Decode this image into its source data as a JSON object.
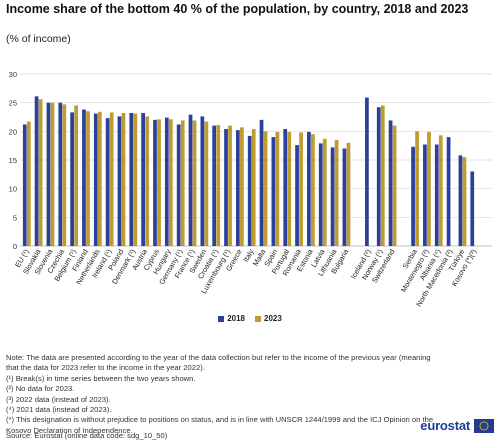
{
  "header": {
    "title": "Income share of the bottom 40 % of the population, by country, 2018 and 2023",
    "subtitle": "(% of income)"
  },
  "colors": {
    "series_2018": "#2b3f9c",
    "series_2023": "#bf9b30",
    "grid": "#d9d9d9"
  },
  "chart_data": {
    "type": "bar",
    "ylim": [
      0,
      30
    ],
    "yticks": [
      0,
      5,
      10,
      15,
      20,
      25,
      30
    ],
    "grid": true,
    "legend_position": "bottom",
    "categories": [
      "EU (¹)",
      "Slovakia",
      "Slovenia",
      "Czechia",
      "Belgium (¹)",
      "Finland",
      "Netherlands",
      "Ireland (¹)",
      "Poland",
      "Denmark (¹)",
      "Austria",
      "Cyprus",
      "Hungary",
      "Germany (¹)",
      "France (¹)",
      "Sweden",
      "Croatia (¹)",
      "Luxembourg (¹)",
      "Greece",
      "Italy",
      "Malta",
      "Spain",
      "Portugal",
      "Romania",
      "Estonia",
      "Latvia",
      "Lithuania",
      "Bulgaria",
      "Iceland (²)",
      "Norway (¹)",
      "Switzerland",
      "Serbia",
      "Montenegro (³)",
      "Albania (⁴)",
      "North Macedonia (³)",
      "Türkiye",
      "Kosovo (*)(³)"
    ],
    "groups_before_gap": [
      28,
      31,
      37
    ],
    "series": [
      {
        "name": "2018",
        "values": [
          21.2,
          26.1,
          25.0,
          25.0,
          23.3,
          23.8,
          23.1,
          22.3,
          22.6,
          23.2,
          23.2,
          22.0,
          22.4,
          21.2,
          22.9,
          22.6,
          21.0,
          20.4,
          20.2,
          19.2,
          22.0,
          19.0,
          20.4,
          17.6,
          19.9,
          17.9,
          17.2,
          17.0,
          25.9,
          24.2,
          21.9,
          17.3,
          17.7,
          17.7,
          19.0,
          15.8,
          13.0
        ]
      },
      {
        "name": "2023",
        "values": [
          21.7,
          25.6,
          25.0,
          24.7,
          24.5,
          23.5,
          23.4,
          23.3,
          23.2,
          23.1,
          22.6,
          22.1,
          22.1,
          21.9,
          21.9,
          21.7,
          21.1,
          21.0,
          20.7,
          20.4,
          20.0,
          19.9,
          19.9,
          19.8,
          19.5,
          18.7,
          18.5,
          18.0,
          null,
          24.5,
          21.0,
          20.0,
          19.9,
          19.3,
          null,
          15.5,
          null
        ]
      }
    ]
  },
  "legend": {
    "items": [
      "2018",
      "2023"
    ]
  },
  "notes": {
    "lines": [
      "Note: The data are presented according to the year of the data collection but refer to the income of the previous year (meaning that the data for 2023 refer to the income in the year 2022).",
      "(¹) Break(s) in time series between the two years shown.",
      "(²) No data for 2023.",
      "(³) 2022 data (instead of 2023).",
      "(⁴) 2021 data (instead of 2023).",
      "(*) This designation is without prejudice to positions on status, and is in line with UNSCR 1244/1999 and the ICJ Opinion on the Kosovo Declaration of Independence."
    ]
  },
  "source": {
    "text": "Source: Eurostat (online data code: sdg_10_50)"
  },
  "logo": {
    "text": "eurostat",
    "icon": "eu-flag-icon"
  }
}
